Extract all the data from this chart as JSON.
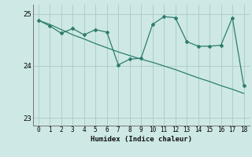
{
  "xlabel": "Humidex (Indice chaleur)",
  "background_color": "#cde8e5",
  "line_color": "#2e7d6e",
  "grid_color": "#aecfcc",
  "line1_x": [
    0,
    1,
    2,
    3,
    4,
    5,
    6,
    7,
    8,
    9,
    10,
    11,
    12,
    13,
    14,
    15,
    16,
    17,
    18
  ],
  "line1_y": [
    24.88,
    24.77,
    24.63,
    24.72,
    24.6,
    24.7,
    24.65,
    24.02,
    24.13,
    24.15,
    24.8,
    24.95,
    24.93,
    24.47,
    24.38,
    24.38,
    24.4,
    24.93,
    23.62
  ],
  "line2_x": [
    0,
    1,
    2,
    3,
    4,
    5,
    6,
    7,
    8,
    9,
    10,
    11,
    12,
    13,
    14,
    15,
    16,
    17,
    18
  ],
  "line2_y": [
    24.88,
    24.8,
    24.7,
    24.6,
    24.52,
    24.43,
    24.35,
    24.27,
    24.2,
    24.13,
    24.07,
    24.0,
    23.93,
    23.85,
    23.77,
    23.7,
    23.62,
    23.55,
    23.47
  ],
  "ylim_min": 22.85,
  "ylim_max": 25.18,
  "yticks": [
    23,
    24,
    25
  ],
  "xticks": [
    0,
    1,
    2,
    3,
    4,
    5,
    6,
    7,
    8,
    9,
    10,
    11,
    12,
    13,
    14,
    15,
    16,
    17,
    18
  ]
}
